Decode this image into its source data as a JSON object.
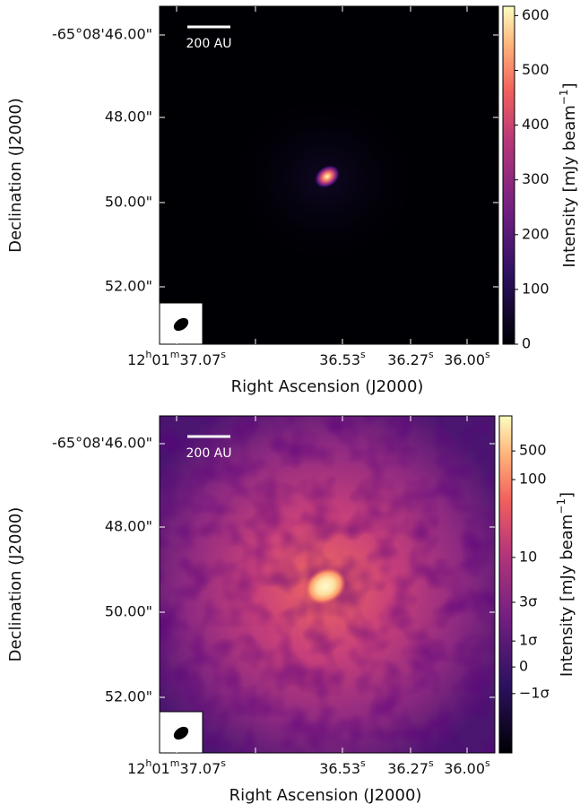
{
  "panels": [
    {
      "type": "image",
      "xlabel": "Right Ascension (J2000)",
      "ylabel": "Declination (J2000)",
      "xticks": [
        [
          "12",
          "h",
          "01",
          "m",
          "37.07",
          "s"
        ],
        null,
        [
          "36.53",
          "s"
        ],
        [
          "36.27",
          "s"
        ],
        [
          "36.00",
          "s"
        ]
      ],
      "yticks": [
        "-65°08'46.00\"",
        "48.00\"",
        "50.00\"",
        "52.00\""
      ],
      "scalebar": "200 AU",
      "colorbar": {
        "label": [
          "Intensity [mJy beam",
          "−1",
          "]"
        ],
        "clim": [
          0,
          617
        ],
        "ticks": [
          0,
          100,
          200,
          300,
          400,
          500,
          600
        ]
      }
    },
    {
      "type": "image",
      "xlabel": "Right Ascension (J2000)",
      "ylabel": "Declination (J2000)",
      "xticks": [
        [
          "12",
          "h",
          "01",
          "m",
          "37.07",
          "s"
        ],
        null,
        [
          "36.53",
          "s"
        ],
        [
          "36.27",
          "s"
        ],
        [
          "36.00",
          "s"
        ]
      ],
      "yticks": [
        "-65°08'46.00\"",
        "48.00\"",
        "50.00\"",
        "52.00\""
      ],
      "scalebar": "200 AU",
      "colorbar": {
        "label": [
          "Intensity [mJy beam",
          "−1",
          "]"
        ],
        "ticklabels": [
          "500",
          "100",
          "10",
          "3σ",
          "1σ",
          "0",
          "−1σ"
        ]
      }
    }
  ]
}
